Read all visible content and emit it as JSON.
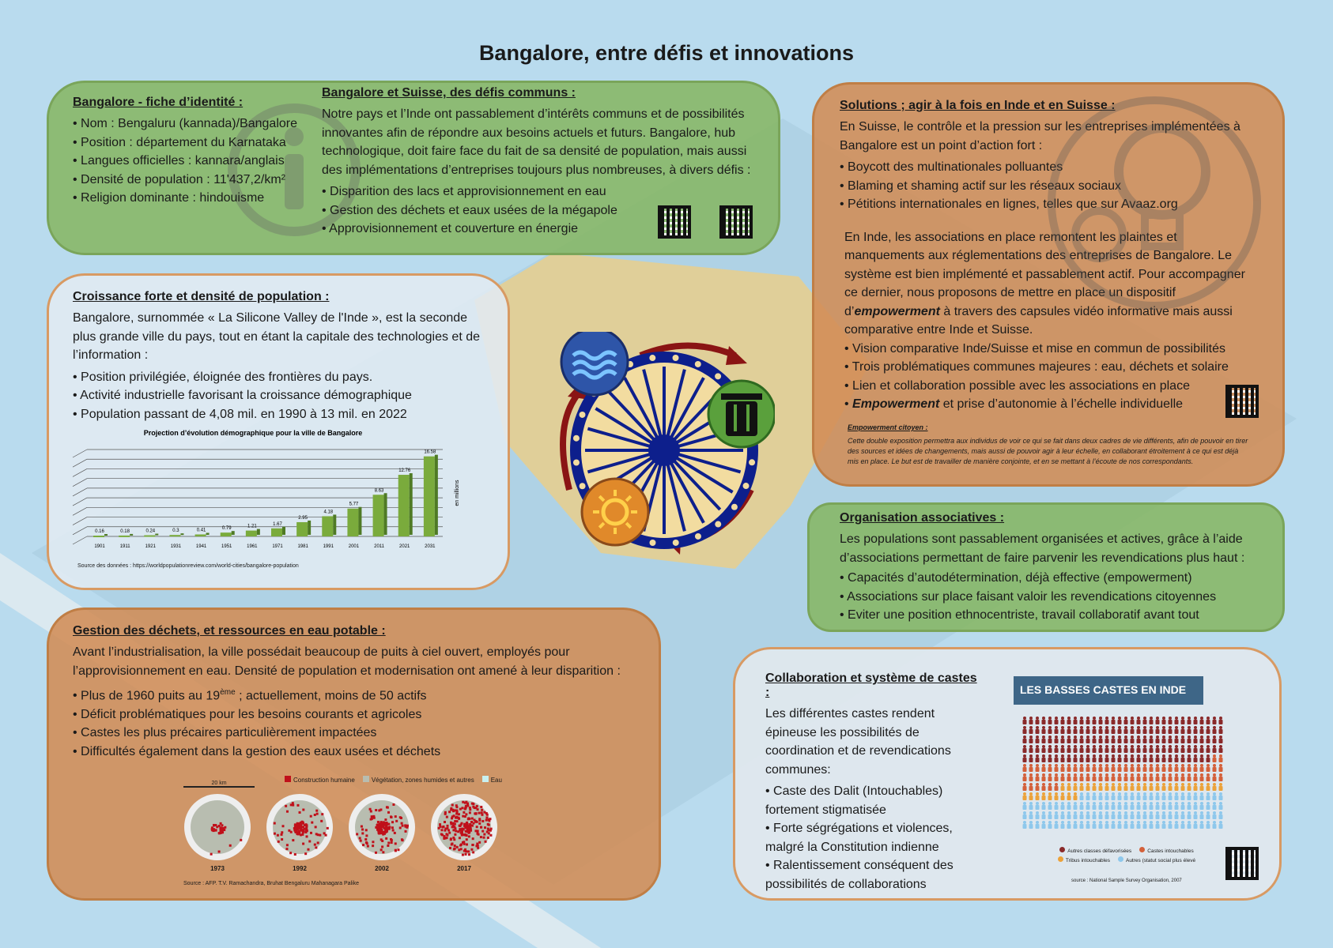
{
  "title": "Bangalore, entre défis et innovations",
  "identity": {
    "heading": "Bangalore - fiche d’identité :",
    "items": [
      "Nom : Bengaluru (kannada)/Bangalore",
      "Position : département du Karnataka",
      "Langues officielles : kannara/anglais",
      "Densité de population : 11'437,2/km²",
      "Religion dominante : hindouisme"
    ]
  },
  "swiss": {
    "heading": "Bangalore et Suisse, des défis communs :",
    "intro": "Notre pays et l’Inde ont passablement d’intérêts communs et de possibilités innovantes afin de répondre aux besoins actuels et futurs. Bangalore, hub technologique, doit faire face du fait de sa densité de population, mais aussi des implémentations d’entreprises toujours plus nombreuses, à divers défis :",
    "items": [
      "Disparition des lacs et approvisionnement en eau",
      "Gestion des déchets et eaux usées de la mégapole",
      "Approvisionnement et couverture en énergie"
    ]
  },
  "growth": {
    "heading": "Croissance forte et densité de population :",
    "intro": "Bangalore, surnommée « La Silicone Valley de l'Inde », est la seconde plus grande ville du pays, tout en étant la capitale des technologies et de l’information :",
    "items": [
      "Position privilégiée, éloignée des frontières du pays.",
      "Activité industrielle favorisant la croissance démographique",
      "Population passant de 4,08 mil. en 1990 à 13 mil. en 2022"
    ],
    "source": "Source des données : https://worldpopulationreview.com/world-cities/bangalore-population"
  },
  "chart_data": {
    "type": "bar",
    "title": "Projection d’évolution démographique pour la ville de Bangalore",
    "ylabel": "en millions",
    "categories": [
      "1901",
      "1911",
      "1921",
      "1931",
      "1941",
      "1951",
      "1961",
      "1971",
      "1981",
      "1991",
      "2001",
      "2011",
      "2021",
      "2031"
    ],
    "values": [
      0.16,
      0.18,
      0.24,
      0.3,
      0.41,
      0.79,
      1.21,
      1.67,
      2.95,
      4.18,
      5.77,
      8.63,
      12.76,
      16.58
    ],
    "value_labels": [
      "0.16",
      "0.18",
      "0.24",
      "0.3",
      "0.41",
      "0.79",
      "1.21",
      "1.67",
      "2.95",
      "4.18",
      "5.77",
      "8.63",
      "12.76",
      "16.58"
    ],
    "ylim": [
      0,
      18
    ],
    "grid": true,
    "bar_color": "#7aab3c"
  },
  "waste": {
    "heading": "Gestion des déchets, et ressources en eau potable :",
    "intro": "Avant l’industrialisation, la ville possédait beaucoup de puits à ciel ouvert, employés pour l’approvisionnement en eau. Densité de population et modernisation ont amené à leur disparition :",
    "item1_pre": "Plus de 1960 puits au 19",
    "item1_sup": "ème",
    "item1_post": " ; actuellement, moins de 50 actifs",
    "items": [
      "Déficit problématiques pour les besoins courants et agricoles",
      "Castes les plus précaires particulièrement impactées",
      "Difficultés également dans la gestion des eaux usées et déchets"
    ],
    "map_scale": "20 km",
    "legend": [
      {
        "label": "Construction humaine",
        "color": "#c0101a"
      },
      {
        "label": "Végétation, zones humides et autres",
        "color": "#b8bdb0"
      },
      {
        "label": "Eau",
        "color": "#c8f0f0"
      }
    ],
    "maps": [
      {
        "year": "1973",
        "built": 0.12
      },
      {
        "year": "1992",
        "built": 0.4
      },
      {
        "year": "2002",
        "built": 0.55
      },
      {
        "year": "2017",
        "built": 0.88
      }
    ],
    "source": "Source : AFP. T.V. Ramachandra, Bruhat Bengaluru Mahanagara Palike"
  },
  "solutions": {
    "heading": "Solutions ; agir à la fois en Inde et en Suisse :",
    "intro": "En Suisse, le contrôle et la pression sur les entreprises implémentées à Bangalore est un point d’action fort :",
    "items": [
      "Boycott des multinationales polluantes",
      "Blaming et shaming actif sur les réseaux sociaux",
      "Pétitions internationales en lignes, telles que sur Avaaz.org"
    ],
    "india_pre": "En Inde, les associations en place remontent les plaintes et manquements aux réglementations des entreprises de Bangalore. Le système est bien implémenté et passablement actif. Pour accompagner ce dernier, nous proposons de mettre en place un dispositif d’",
    "india_em": "empowerment",
    "india_post": " à travers des capsules vidéo informative mais aussi comparative entre Inde et Suisse.",
    "items2": [
      "Vision comparative Inde/Suisse et mise en commun de possibilités",
      "Trois problématiques communes majeures : eau, déchets et solaire",
      "Lien et collaboration possible avec les associations en place"
    ],
    "item_last_em": "Empowerment",
    "item_last": " et prise d’autonomie à l’échelle individuelle",
    "note_heading": "Empowerment citoyen :",
    "note": "Cette double exposition permettra aux individus de voir ce qui se fait dans deux cadres de vie différents, afin de pouvoir en tirer des sources et idées de changements, mais aussi de pouvoir agir à leur échelle, en collaborant étroitement à ce qui est déjà mis en place. Le but est de travailler de manière conjointe, et en se mettant à l’écoute de nos correspondants."
  },
  "orgs": {
    "heading": "Organisation associatives :",
    "intro": "Les populations sont passablement organisées et actives, grâce à l’aide d’associations permettant de faire parvenir les revendications plus haut :",
    "items": [
      "Capacités d’autodétermination, déjà effective (empowerment)",
      "Associations sur place faisant valoir les revendications citoyennes",
      "Eviter une position ethnocentriste, travail collaboratif avant tout"
    ]
  },
  "castes": {
    "heading": "Collaboration et système de castes :",
    "intro": "Les différentes castes rendent épineuse les possibilités de coordination et de revendications communes:",
    "items": [
      "Caste des Dalit (Intouchables) fortement stigmatisée",
      "Forte ségrégations et violences, malgré la Constitution indienne",
      "Ralentissement conséquent des possibilités de collaborations"
    ],
    "infographic_title": "LES BASSES CASTES EN INDE",
    "groups": [
      {
        "label": "Autres classes défavorisées",
        "count": 158,
        "color": "#8a2a2a"
      },
      {
        "label": "Castes intouchables",
        "count": 72,
        "color": "#d4603a"
      },
      {
        "label": "Tribus intouchables",
        "count": 35,
        "color": "#eca23a"
      },
      {
        "label": "Autres (statut social plus élevé",
        "count": 119,
        "color": "#8ec8ec"
      }
    ],
    "source": "source : National Sample Survey Organisation, 2007"
  },
  "icons": [
    "info-icon",
    "lightbulb-icon",
    "water-icon",
    "trash-icon",
    "sun-icon",
    "ashoka-chakra-icon",
    "qr-code-icon"
  ]
}
